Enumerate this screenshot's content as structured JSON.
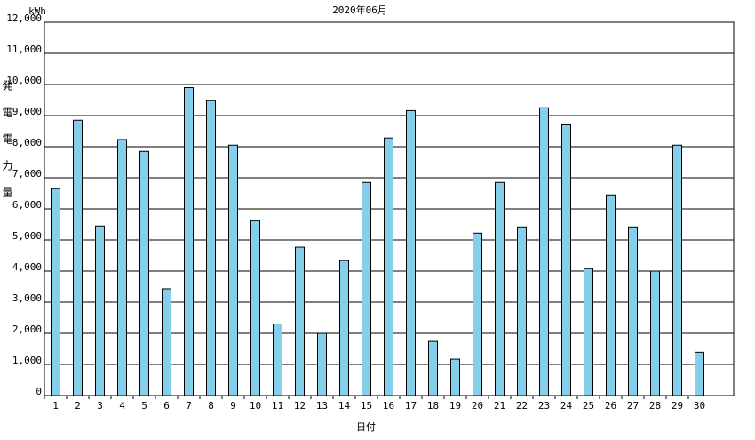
{
  "chart_data": {
    "type": "bar",
    "title": "2020年06月",
    "unit": "kWh",
    "y_label": "発電電力量",
    "x_label": "日付",
    "categories": [
      "1",
      "2",
      "3",
      "4",
      "5",
      "6",
      "7",
      "8",
      "9",
      "10",
      "11",
      "12",
      "13",
      "14",
      "15",
      "16",
      "17",
      "18",
      "19",
      "20",
      "21",
      "22",
      "23",
      "24",
      "25",
      "26",
      "27",
      "28",
      "29",
      "30"
    ],
    "values": [
      6650,
      8850,
      5450,
      8230,
      7850,
      3430,
      9900,
      9480,
      8050,
      5620,
      2300,
      4770,
      2000,
      4340,
      6850,
      8280,
      9160,
      1740,
      1170,
      5220,
      6850,
      5420,
      9250,
      8700,
      4080,
      6450,
      5420,
      4000,
      8050,
      1390
    ],
    "color": "#87ceeb",
    "ylim": [
      0,
      12000
    ],
    "yticks": [
      0,
      {
        "value": 1000,
        "label": "1,000"
      },
      {
        "value": 2000,
        "label": "2,000"
      },
      {
        "value": 3000,
        "label": "3,000"
      },
      {
        "value": 4000,
        "label": "4,000"
      },
      {
        "value": 5000,
        "label": "5,000"
      },
      {
        "value": 6000,
        "label": "6,000"
      },
      {
        "value": 7000,
        "label": "7,000"
      },
      {
        "value": 8000,
        "label": "8,000"
      },
      {
        "value": 9000,
        "label": "9,000"
      },
      {
        "value": 10000,
        "label": "10,000"
      },
      {
        "value": 11000,
        "label": "11,000"
      },
      {
        "value": 12000,
        "label": "12,000"
      }
    ],
    "grid": true
  }
}
